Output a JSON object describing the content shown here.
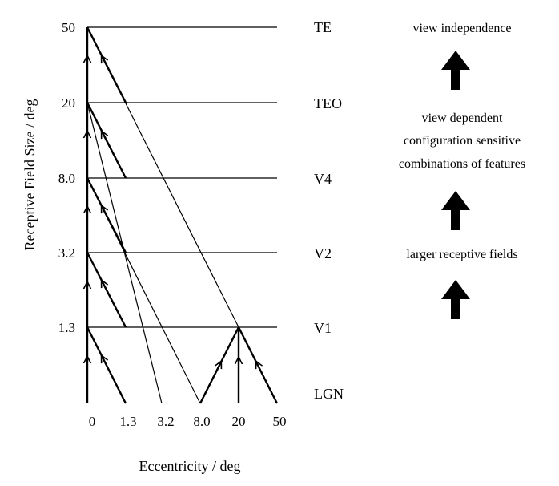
{
  "diagram": {
    "y_axis_label": "Receptive Field Size / deg",
    "x_axis_label": "Eccentricity / deg",
    "y_ticks": [
      "50",
      "20",
      "8.0",
      "3.2",
      "1.3"
    ],
    "x_ticks": [
      "0",
      "1.3",
      "3.2",
      "8.0",
      "20",
      "50"
    ],
    "areas": [
      "TE",
      "TEO",
      "V4",
      "V2",
      "V1",
      "LGN"
    ],
    "notes": [
      "view independence",
      "view dependent",
      "configuration sensitive",
      "combinations of features",
      "larger receptive fields"
    ],
    "up_arrow_count": 3,
    "line_color": "#000000"
  }
}
